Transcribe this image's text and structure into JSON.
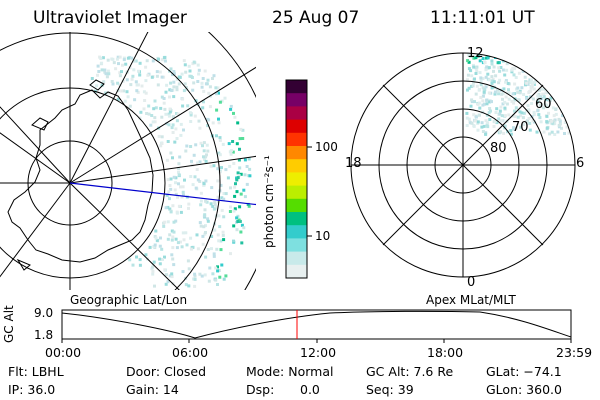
{
  "header": {
    "title": "Ultraviolet Imager",
    "date": "25 Aug 07",
    "time": "11:11:01 UT"
  },
  "left_panel": {
    "label": "Geographic Lat/Lon"
  },
  "right_panel": {
    "label": "Apex  MLat/MLT",
    "mlt_labels": {
      "top": "12",
      "bottom": "0",
      "left": "18",
      "right": "6"
    },
    "mlat_labels": [
      "60",
      "70",
      "80"
    ]
  },
  "colorbar": {
    "unit": "photon cm⁻²s⁻¹",
    "ticks": [
      "100",
      "10"
    ],
    "colors": [
      "#e8f0f0",
      "#c8eaea",
      "#7ee0e0",
      "#33cccc",
      "#00c080",
      "#55dd00",
      "#bbee00",
      "#eeee00",
      "#ffcc00",
      "#ff8800",
      "#ff3300",
      "#dd0000",
      "#aa0044",
      "#770066",
      "#330033"
    ]
  },
  "altitude_plot": {
    "ylabel": "GC Alt",
    "y_ticks": [
      "9.0",
      "1.8"
    ],
    "x_ticks": [
      "00:00",
      "06:00",
      "12:00",
      "18:00",
      "23:59"
    ],
    "marker_color": "#ff0000"
  },
  "info": {
    "row1": {
      "flt": "Flt: LBHL",
      "door": "Door: Closed",
      "mode": "Mode: Normal",
      "gcalt": "GC Alt: 7.6 Re",
      "glat": "GLat: −74.1"
    },
    "row2": {
      "ip": "IP: 36.0",
      "gain": "Gain: 14",
      "dsp_label": "Dsp:",
      "dsp_value": "0.0",
      "seq": "Seq: 39",
      "glon": "GLon: 360.0"
    }
  }
}
